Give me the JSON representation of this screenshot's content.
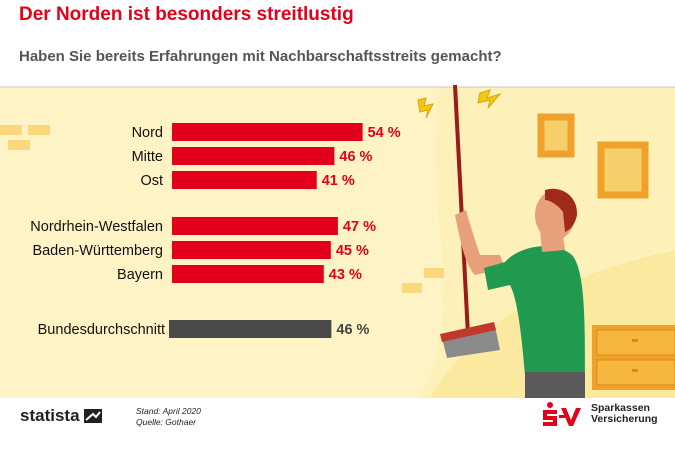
{
  "title": "Der Norden ist besonders streitlustig",
  "subtitle": "Haben Sie bereits Erfahrungen mit Nachbarschaftsstreits gemacht?",
  "footer": {
    "brand": "statista",
    "stand": "Stand: April 2020",
    "quelle": "Quelle: Gothaer",
    "partner_line1": "Sparkassen",
    "partner_line2": "Versicherung"
  },
  "colors": {
    "accent": "#e2001a",
    "average": "#4a4a4a",
    "background": "#fdf0b8",
    "shirt": "#1f9a4e",
    "frame": "#f0a12a"
  },
  "chart_data": {
    "type": "bar",
    "orientation": "horizontal",
    "categories": [
      "Nord",
      "Mitte",
      "Ost",
      "Nordrhein-Westfalen",
      "Baden-Württemberg",
      "Bayern",
      "Bundesdurchschnitt"
    ],
    "values": [
      54,
      46,
      41,
      47,
      45,
      43,
      46
    ],
    "value_labels": [
      "54 %",
      "46 %",
      "41 %",
      "47 %",
      "45 %",
      "43 %",
      "46 %"
    ],
    "highlight": "Bundesdurchschnitt",
    "xlim": [
      0,
      100
    ]
  }
}
